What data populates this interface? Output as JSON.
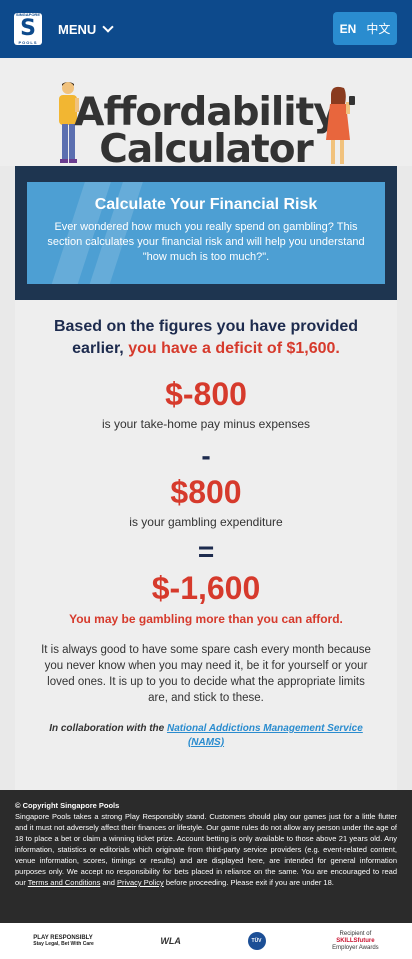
{
  "header": {
    "logo_top": "SINGAPORE",
    "logo_letter": "S",
    "logo_bottom": "POOLS",
    "menu_label": "MENU",
    "lang_en": "EN",
    "lang_zh": "中文"
  },
  "hero": {
    "title_line1": "Affordability",
    "title_line2": "Calculator"
  },
  "banner": {
    "title": "Calculate Your Financial Risk",
    "text": "Ever wondered how much you really spend on gambling? This section calculates your financial risk and will help you understand \"how much is too much?\"."
  },
  "results": {
    "intro_text": "Based on the figures you have provided earlier,",
    "intro_deficit": "you have a deficit of $1,600.",
    "takehome_value": "$-800",
    "takehome_caption": "is your take-home pay minus expenses",
    "minus_sign": "-",
    "gambling_value": "$800",
    "gambling_caption": "is your gambling expenditure",
    "equals_sign": "=",
    "result_value": "$-1,600",
    "warning": "You may be gambling more than you can afford.",
    "advice": "It is always good to have some spare cash every month because you never know when you may need it, be it for yourself or your loved ones. It is up to you to decide what the appropriate limits are, and stick to these.",
    "collab_prefix": "In collaboration with the",
    "collab_link": "National Addictions Management Service (NAMS)"
  },
  "footer": {
    "copyright": "© Copyright Singapore Pools",
    "legal_main": "Singapore Pools takes a strong Play Responsibly stand. Customers should play our games just for a little flutter and it must not adversely affect their finances or lifestyle. Our game rules do not allow any person under the age of 18 to place a bet or claim a winning ticket prize. Account betting is only available to those above 21 years old. Any information, statistics or editorials which originate from third-party service providers (e.g. event-related content, venue information, scores, timings or results) and are displayed here, are intended for general information purposes only. We accept no responsibility for bets placed in reliance on the same. You are encouraged to read our",
    "terms_link": "Terms and Conditions",
    "and_text": "and",
    "privacy_link": "Privacy Policy",
    "legal_end": "before proceeding. Please exit if you are under 18."
  },
  "partners": {
    "play_responsibly": "PLAY RESPONSIBLY",
    "play_sub": "Stay Legal, Bet With Care",
    "wla": "WLA",
    "tuv": "TÜV",
    "skills_prefix": "Recipient of",
    "skills_brand": "SKILLSfuture",
    "skills_sub": "Employer Awards"
  },
  "colors": {
    "header_bg": "#0d4a8c",
    "accent_red": "#d63a2c",
    "banner_blue": "#4d9fd3",
    "frame_navy": "#1e3550",
    "footer_bg": "#2b2b2b"
  }
}
